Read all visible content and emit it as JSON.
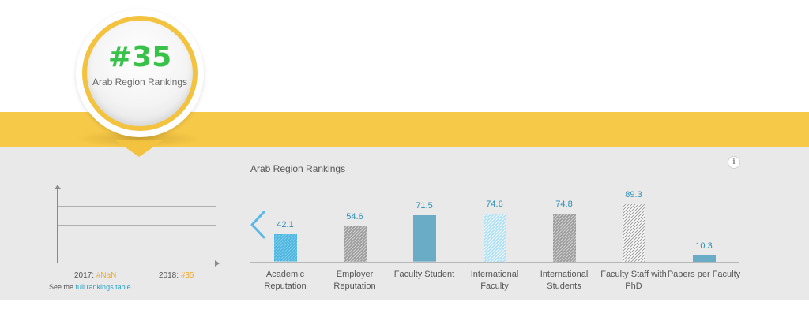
{
  "badge": {
    "rank": "#35",
    "label": "Arab Region Rankings"
  },
  "history": {
    "year1_label": "2017:",
    "year1_value": "#NaN",
    "year2_label": "2018:",
    "year2_value": "#35",
    "see_prefix": "See the",
    "see_link": "full rankings table"
  },
  "colors": {
    "band": "#f7c948",
    "panel": "#e9e9e9",
    "rank_green": "#39c24a",
    "value_blue": "#2a8fb8",
    "year_orange": "#f0a82a"
  },
  "chart_data": {
    "type": "bar",
    "title": "Arab Region Rankings",
    "categories": [
      [
        "Academic",
        "Reputation"
      ],
      [
        "Employer",
        "Reputation"
      ],
      [
        "Faculty Student"
      ],
      [
        "International",
        "Faculty"
      ],
      [
        "International",
        "Students"
      ],
      [
        "Faculty Staff with",
        "PhD"
      ],
      [
        "Papers per Faculty"
      ]
    ],
    "values": [
      42.1,
      54.6,
      71.5,
      74.6,
      74.8,
      89.3,
      10.3
    ],
    "value_labels": [
      "42.1",
      "54.6",
      "71.5",
      "74.6",
      "74.8",
      "89.3",
      "10.3"
    ],
    "styles": [
      "blue-stripe",
      "gray-hatch",
      "blue-solid",
      "light-blue-hatch",
      "gray-hatch",
      "white-hatch",
      "blue-solid"
    ],
    "ylim": [
      0,
      100
    ],
    "grid": false,
    "legend": "none"
  }
}
